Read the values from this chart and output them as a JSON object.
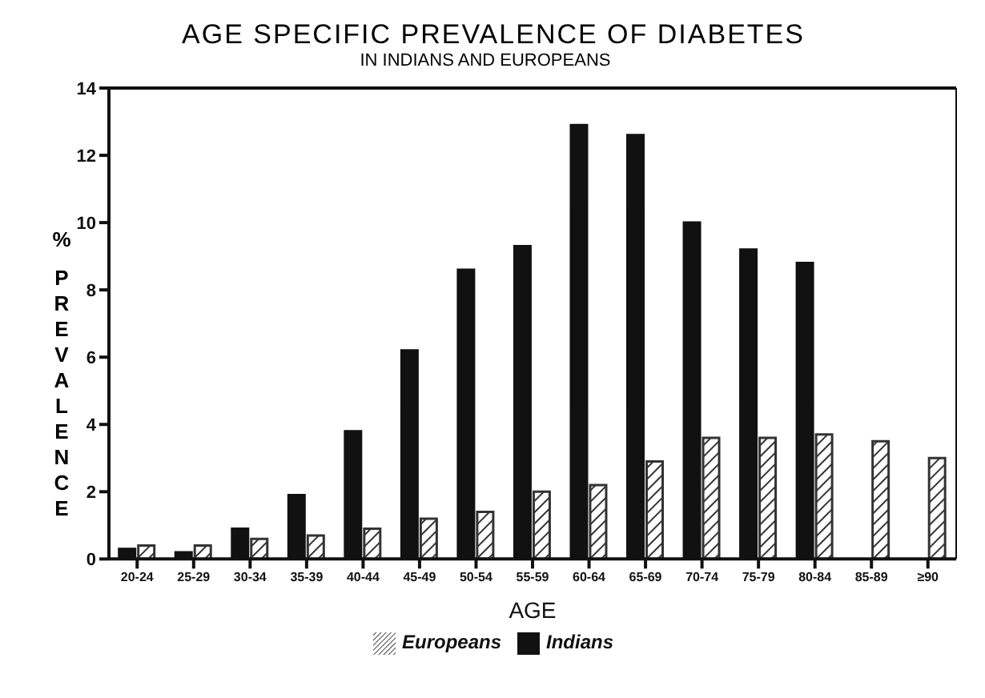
{
  "chart_data": {
    "type": "bar",
    "title": "AGE SPECIFIC PREVALENCE OF DIABETES",
    "subtitle": "IN INDIANS AND EUROPEANS",
    "xlabel": "AGE",
    "ylabel": "% PREVALENCE",
    "categories": [
      "20-24",
      "25-29",
      "30-34",
      "35-39",
      "40-44",
      "45-49",
      "50-54",
      "55-59",
      "60-64",
      "65-69",
      "70-74",
      "75-79",
      "80-84",
      "85-89",
      "≥90"
    ],
    "series": [
      {
        "name": "Indians",
        "color": "#111111",
        "values": [
          0.3,
          0.2,
          0.9,
          1.9,
          3.8,
          6.2,
          8.6,
          9.3,
          12.9,
          12.6,
          10.0,
          9.2,
          8.8,
          null,
          null
        ]
      },
      {
        "name": "Europeans",
        "color": "#333333",
        "values": [
          0.4,
          0.4,
          0.6,
          0.7,
          0.9,
          1.2,
          1.4,
          2.0,
          2.2,
          2.9,
          3.6,
          3.6,
          3.7,
          3.5,
          3.0
        ]
      }
    ],
    "ylim": [
      0,
      14
    ],
    "yticks": [
      0,
      2,
      4,
      6,
      8,
      10,
      12,
      14
    ],
    "grid": false,
    "legend": "bottom"
  }
}
